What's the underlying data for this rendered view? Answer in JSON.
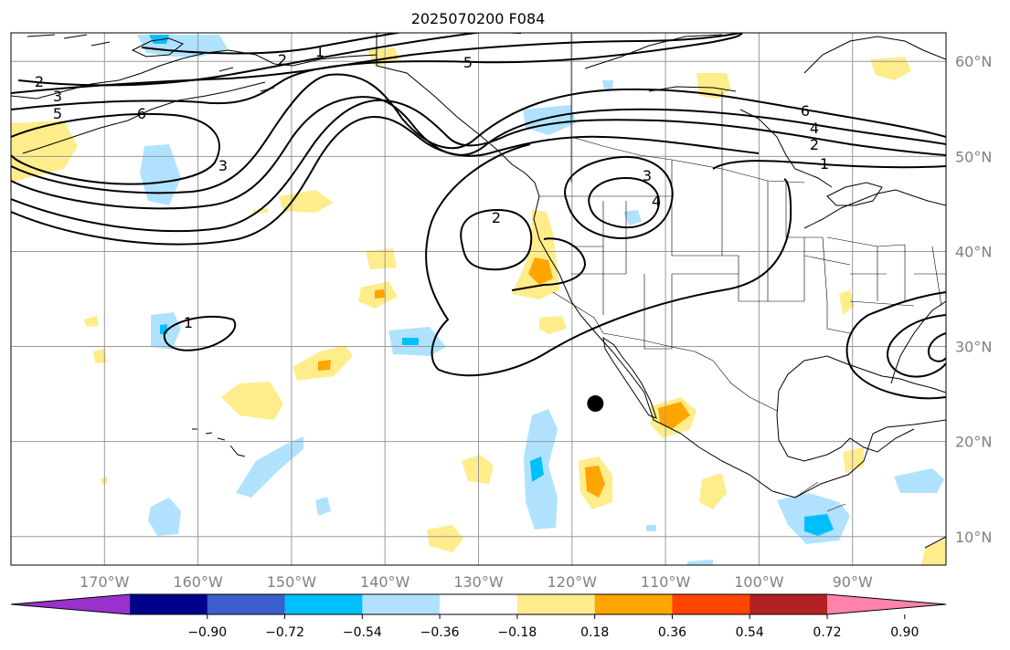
{
  "title": "2025070200 F084",
  "map": {
    "lon_range": [
      -180,
      -80
    ],
    "lat_range": [
      7,
      63
    ],
    "lon_ticks": [
      {
        "value": -170,
        "label": "170°W"
      },
      {
        "value": -160,
        "label": "160°W"
      },
      {
        "value": -150,
        "label": "150°W"
      },
      {
        "value": -140,
        "label": "140°W"
      },
      {
        "value": -130,
        "label": "130°W"
      },
      {
        "value": -120,
        "label": "120°W"
      },
      {
        "value": -110,
        "label": "110°W"
      },
      {
        "value": -100,
        "label": "100°W"
      },
      {
        "value": -90,
        "label": "90°W"
      }
    ],
    "lat_ticks": [
      {
        "value": 10,
        "label": "10°N"
      },
      {
        "value": 20,
        "label": "20°N"
      },
      {
        "value": 30,
        "label": "30°N"
      },
      {
        "value": 40,
        "label": "40°N"
      },
      {
        "value": 50,
        "label": "50°N"
      },
      {
        "value": 60,
        "label": "60°N"
      }
    ],
    "marker": {
      "lon": -117.5,
      "lat": 24,
      "color": "#000000"
    }
  },
  "colorbar": {
    "boundaries": [
      "-0.90",
      "-0.72",
      "-0.54",
      "-0.36",
      "-0.18",
      "0.18",
      "0.36",
      "0.54",
      "0.72",
      "0.90"
    ],
    "colors": [
      "#9932cc",
      "#00008b",
      "#3a5fcd",
      "#00bfff",
      "#b0e2ff",
      "#ffffff",
      "#ffec8b",
      "#ffa500",
      "#ff4500",
      "#b22222",
      "#ff82ab"
    ]
  },
  "contour_labels": [
    "1",
    "2",
    "3",
    "4",
    "5",
    "6"
  ]
}
